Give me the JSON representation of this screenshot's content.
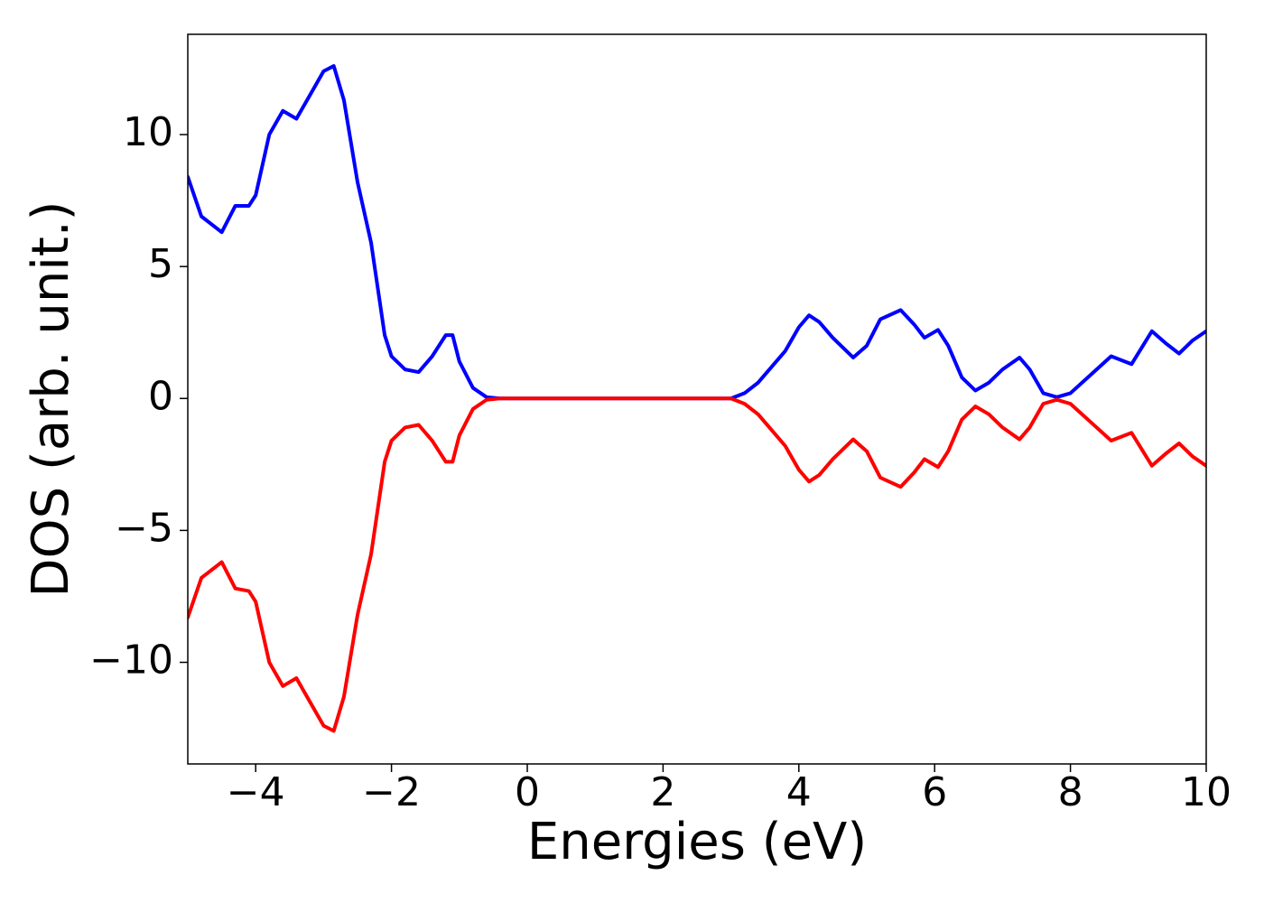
{
  "chart_data": {
    "type": "line",
    "xlabel": "Energies (eV)",
    "ylabel": "DOS (arb. unit.)",
    "x": [
      -5,
      -4.8,
      -4.6,
      -4.5,
      -4.3,
      -4.1,
      -4.0,
      -3.8,
      -3.6,
      -3.4,
      -3.2,
      -3.0,
      -2.85,
      -2.7,
      -2.5,
      -2.3,
      -2.1,
      -2.0,
      -1.8,
      -1.6,
      -1.4,
      -1.2,
      -1.1,
      -1.0,
      -0.8,
      -0.6,
      -0.4,
      0,
      1,
      2,
      3.0,
      3.2,
      3.4,
      3.6,
      3.8,
      4.0,
      4.15,
      4.3,
      4.5,
      4.8,
      5.0,
      5.2,
      5.5,
      5.7,
      5.85,
      6.05,
      6.2,
      6.4,
      6.6,
      6.8,
      7.0,
      7.25,
      7.4,
      7.6,
      7.8,
      8.0,
      8.3,
      8.6,
      8.9,
      9.2,
      9.4,
      9.6,
      9.8,
      10.0
    ],
    "series": [
      {
        "color": "#0000ff",
        "values": [
          8.4,
          6.9,
          6.5,
          6.3,
          7.3,
          7.3,
          7.7,
          10.0,
          10.9,
          10.6,
          11.5,
          12.4,
          12.6,
          11.3,
          8.2,
          5.9,
          2.4,
          1.6,
          1.1,
          1.0,
          1.6,
          2.4,
          2.4,
          1.4,
          0.4,
          0.05,
          0,
          0,
          0,
          0,
          0,
          0.2,
          0.6,
          1.2,
          1.8,
          2.7,
          3.15,
          2.9,
          2.3,
          1.55,
          2.0,
          3.0,
          3.35,
          2.8,
          2.3,
          2.6,
          2.0,
          0.8,
          0.3,
          0.6,
          1.1,
          1.55,
          1.1,
          0.2,
          0.05,
          0.2,
          0.9,
          1.6,
          1.3,
          2.55,
          2.1,
          1.7,
          2.2,
          2.55
        ]
      },
      {
        "color": "#ff0000",
        "values": [
          -8.3,
          -6.8,
          -6.4,
          -6.2,
          -7.2,
          -7.3,
          -7.7,
          -10.0,
          -10.9,
          -10.6,
          -11.5,
          -12.4,
          -12.6,
          -11.3,
          -8.2,
          -5.9,
          -2.4,
          -1.6,
          -1.1,
          -1.0,
          -1.6,
          -2.4,
          -2.4,
          -1.4,
          -0.4,
          -0.05,
          0,
          0,
          0,
          0,
          0,
          -0.2,
          -0.6,
          -1.2,
          -1.8,
          -2.7,
          -3.15,
          -2.9,
          -2.3,
          -1.55,
          -2.0,
          -3.0,
          -3.35,
          -2.8,
          -2.3,
          -2.6,
          -2.0,
          -0.8,
          -0.3,
          -0.6,
          -1.1,
          -1.55,
          -1.1,
          -0.2,
          -0.05,
          -0.2,
          -0.9,
          -1.6,
          -1.3,
          -2.55,
          -2.1,
          -1.7,
          -2.2,
          -2.55
        ]
      }
    ],
    "xlim": [
      -5,
      10
    ],
    "xticks": [
      {
        "value": -4,
        "label": "−4"
      },
      {
        "value": -2,
        "label": "−2"
      },
      0,
      2,
      4,
      6,
      8,
      10
    ],
    "ylim": [
      -13.85,
      13.8
    ],
    "yticks": [
      {
        "value": -10,
        "label": "−10"
      },
      {
        "value": -5,
        "label": "−5"
      },
      0,
      5,
      10
    ],
    "grid": false
  }
}
